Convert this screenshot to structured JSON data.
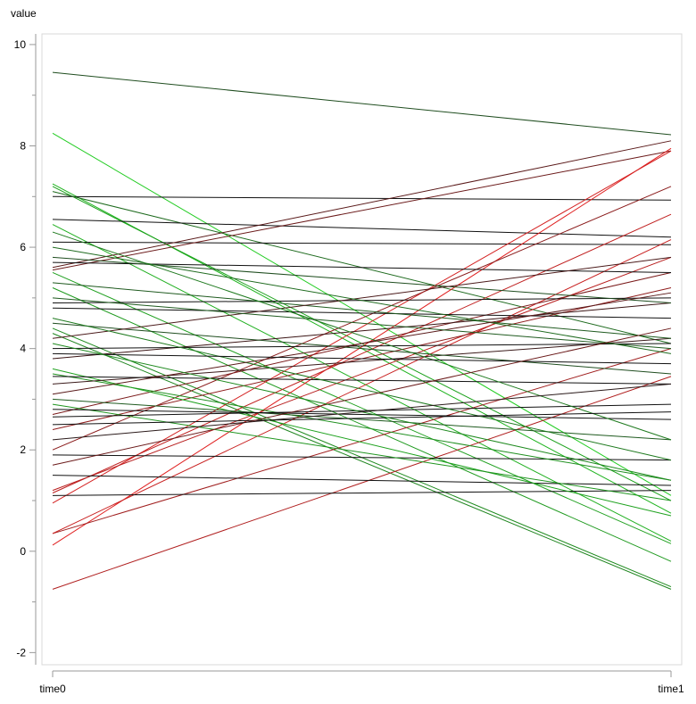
{
  "chart_data": {
    "type": "slope",
    "ylabel": "value",
    "categories": [
      "time0",
      "time1"
    ],
    "ylim": [
      -2.24,
      10.21
    ],
    "yticks": [
      -2,
      0,
      2,
      4,
      6,
      8,
      10
    ],
    "yminor": [
      -1,
      1,
      3,
      5,
      7,
      9
    ],
    "series": [
      {
        "color": "#1f4d1f",
        "values": [
          9.45,
          8.22
        ]
      },
      {
        "color": "#22cc22",
        "values": [
          8.25,
          1.1
        ]
      },
      {
        "color": "#1db31d",
        "values": [
          7.25,
          0.75
        ]
      },
      {
        "color": "#1aa01a",
        "values": [
          7.2,
          1.0
        ]
      },
      {
        "color": "#111111",
        "values": [
          7.0,
          6.93
        ]
      },
      {
        "color": "#1f6b1f",
        "values": [
          7.1,
          4.1
        ]
      },
      {
        "color": "#111111",
        "values": [
          6.55,
          6.2
        ]
      },
      {
        "color": "#22b022",
        "values": [
          6.45,
          0.2
        ]
      },
      {
        "color": "#111111",
        "values": [
          6.1,
          6.05
        ]
      },
      {
        "color": "#5a1a1a",
        "values": [
          5.6,
          8.1
        ]
      },
      {
        "color": "#6b1a1a",
        "values": [
          5.55,
          7.9
        ]
      },
      {
        "color": "#20a020",
        "values": [
          5.5,
          0.15
        ]
      },
      {
        "color": "#1f9a1f",
        "values": [
          5.2,
          -0.2
        ]
      },
      {
        "color": "#1e8a1e",
        "values": [
          4.4,
          -0.7
        ]
      },
      {
        "color": "#1e851e",
        "values": [
          4.3,
          -0.75
        ]
      },
      {
        "color": "#b01f1f",
        "values": [
          -0.75,
          3.45
        ]
      },
      {
        "color": "#e02020",
        "values": [
          0.12,
          7.95
        ]
      },
      {
        "color": "#a01f1f",
        "values": [
          0.35,
          4.0
        ]
      },
      {
        "color": "#c81f1f",
        "values": [
          0.35,
          6.15
        ]
      },
      {
        "color": "#d42020",
        "values": [
          0.95,
          7.9
        ]
      },
      {
        "color": "#c01f1f",
        "values": [
          1.15,
          6.65
        ]
      },
      {
        "color": "#b81f1f",
        "values": [
          1.2,
          5.8
        ]
      },
      {
        "color": "#111111",
        "values": [
          1.1,
          1.2
        ]
      },
      {
        "color": "#111111",
        "values": [
          1.5,
          1.3
        ]
      },
      {
        "color": "#111111",
        "values": [
          1.9,
          1.8
        ]
      },
      {
        "color": "#8a1a1a",
        "values": [
          2.0,
          7.2
        ]
      },
      {
        "color": "#8f1c1c",
        "values": [
          2.4,
          5.2
        ]
      },
      {
        "color": "#7a1a1a",
        "values": [
          2.7,
          5.5
        ]
      },
      {
        "color": "#1f8f1f",
        "values": [
          3.5,
          1.4
        ]
      },
      {
        "color": "#1fa21f",
        "values": [
          3.6,
          0.7
        ]
      },
      {
        "color": "#1f5a1f",
        "values": [
          3.0,
          2.2
        ]
      },
      {
        "color": "#1f951f",
        "values": [
          2.9,
          1.0
        ]
      },
      {
        "color": "#111111",
        "values": [
          2.65,
          2.9
        ]
      },
      {
        "color": "#111111",
        "values": [
          2.8,
          2.6
        ]
      },
      {
        "color": "#3a1a1a",
        "values": [
          3.3,
          4.2
        ]
      },
      {
        "color": "#111111",
        "values": [
          3.45,
          3.3
        ]
      },
      {
        "color": "#3a1414",
        "values": [
          3.8,
          4.9
        ]
      },
      {
        "color": "#111111",
        "values": [
          4.0,
          4.1
        ]
      },
      {
        "color": "#1f4d1f",
        "values": [
          4.5,
          3.5
        ]
      },
      {
        "color": "#111111",
        "values": [
          4.8,
          4.6
        ]
      },
      {
        "color": "#111111",
        "values": [
          4.9,
          5.0
        ]
      },
      {
        "color": "#1f5a1f",
        "values": [
          5.3,
          4.2
        ]
      },
      {
        "color": "#111111",
        "values": [
          5.7,
          5.5
        ]
      },
      {
        "color": "#1f4d1f",
        "values": [
          5.8,
          4.9
        ]
      },
      {
        "color": "#4a1a1a",
        "values": [
          4.2,
          5.8
        ]
      },
      {
        "color": "#1f6b1f",
        "values": [
          6.0,
          3.9
        ]
      },
      {
        "color": "#1f7a1f",
        "values": [
          6.3,
          2.2
        ]
      },
      {
        "color": "#1f7a1f",
        "values": [
          4.6,
          1.8
        ]
      },
      {
        "color": "#5a1a1a",
        "values": [
          3.1,
          5.1
        ]
      },
      {
        "color": "#111111",
        "values": [
          3.9,
          3.7
        ]
      },
      {
        "color": "#1f5a1f",
        "values": [
          5.0,
          4.0
        ]
      },
      {
        "color": "#111111",
        "values": [
          2.5,
          2.75
        ]
      },
      {
        "color": "#6b1a1a",
        "values": [
          1.7,
          4.4
        ]
      },
      {
        "color": "#1f8a1f",
        "values": [
          4.1,
          1.4
        ]
      },
      {
        "color": "#2a1a1a",
        "values": [
          2.2,
          3.3
        ]
      }
    ]
  }
}
